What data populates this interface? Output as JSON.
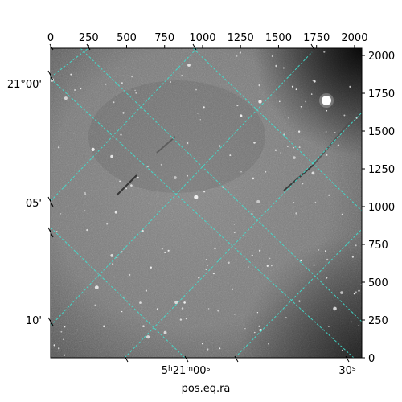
{
  "chart_data": {
    "type": "image",
    "xlabel": "pos.eq.ra",
    "ylabel": "",
    "pixel_axes": {
      "top_ticks": [
        0,
        250,
        500,
        750,
        1000,
        1250,
        1500,
        1750,
        2000
      ],
      "right_ticks": [
        0,
        250,
        500,
        750,
        1000,
        1250,
        1500,
        1750,
        2000
      ],
      "xlim": [
        0,
        2048
      ],
      "ylim": [
        0,
        2048
      ]
    },
    "world_axes": {
      "dec_labels": [
        {
          "label": "21°00'",
          "value_arcmin": 0
        },
        {
          "label": "05'",
          "value_arcmin": 5
        },
        {
          "label": "10'",
          "value_arcmin": 10
        }
      ],
      "ra_labels": [
        {
          "label": "5h21m00s",
          "main": "5",
          "h": "h",
          "m_val": "21",
          "m": "m",
          "s_val": "00",
          "s": "s"
        },
        {
          "label": "30s",
          "main": "30",
          "s": "s"
        }
      ]
    },
    "grid": {
      "on": true,
      "color": "#40e0d0",
      "style": "dashed"
    },
    "image": {
      "colormap": "gray",
      "description_colors": {
        "background": "#7a7a7a",
        "dark_corner": "#1e1e1e"
      }
    }
  }
}
